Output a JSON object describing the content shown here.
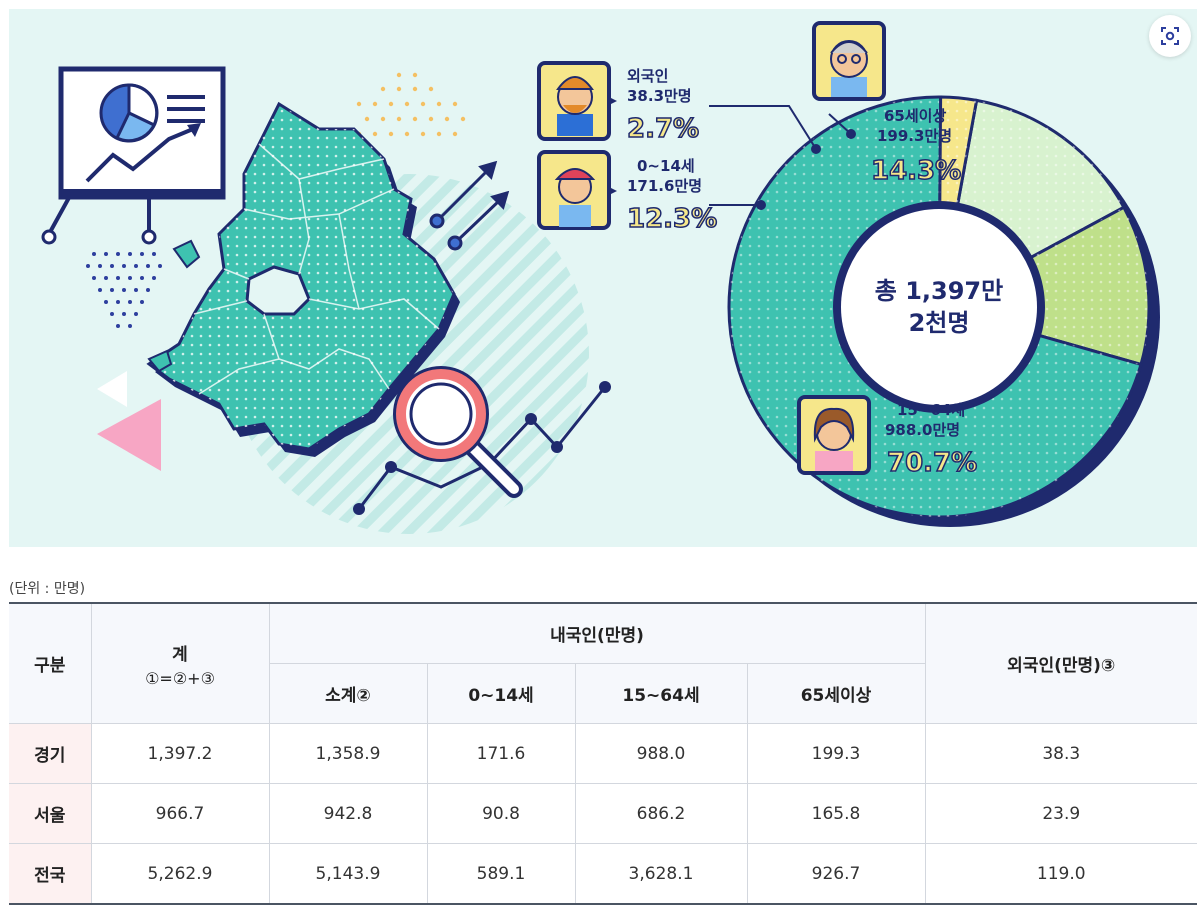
{
  "chart_data": {
    "type": "pie",
    "center_label_line1": "총 1,397만",
    "center_label_line2": "2천명",
    "slices": [
      {
        "name_line1": "외국인",
        "value_line": "38.3만명",
        "percent_label": "2.7%",
        "value": 38.3,
        "percent": 2.7,
        "color": "#f6e78b"
      },
      {
        "name_line1": "0~14세",
        "value_line": "171.6만명",
        "percent_label": "12.3%",
        "value": 171.6,
        "percent": 12.3,
        "color": "#bfe08a"
      },
      {
        "name_line1": "15~64세",
        "value_line": "988.0만명",
        "percent_label": "70.7%",
        "value": 988.0,
        "percent": 70.7,
        "color": "#3ec2b0"
      },
      {
        "name_line1": "65세이상",
        "value_line": "199.3만명",
        "percent_label": "14.3%",
        "value": 199.3,
        "percent": 14.3,
        "color": "#d8f2cf"
      }
    ],
    "slice_order": [
      3,
      1,
      2,
      0
    ]
  },
  "colors": {
    "navy": "#1f2a6e",
    "teal": "#3ec2b0",
    "background": "#e4f6f4",
    "pink": "#f7a6c4"
  },
  "unit_note": "(단위 : 만명)",
  "table": {
    "header": {
      "category": "구분",
      "total_line1": "계",
      "total_line2": "①=②+③",
      "native_group": "내국인(만명)",
      "foreign": "외국인(만명)③",
      "native_cols": [
        "소계②",
        "0~14세",
        "15~64세",
        "65세이상"
      ]
    },
    "rows": [
      {
        "label": "경기",
        "values": [
          "1,397.2",
          "1,358.9",
          "171.6",
          "988.0",
          "199.3",
          "38.3"
        ]
      },
      {
        "label": "서울",
        "values": [
          "966.7",
          "942.8",
          "90.8",
          "686.2",
          "165.8",
          "23.9"
        ]
      },
      {
        "label": "전국",
        "values": [
          "5,262.9",
          "5,143.9",
          "589.1",
          "3,628.1",
          "926.7",
          "119.0"
        ]
      }
    ]
  },
  "icons": {
    "scan": "scan-icon",
    "presentation_board": "presentation-board-icon",
    "map": "gyeonggi-map-illustration",
    "magnifier": "magnifier-icon",
    "avatars": [
      "foreigner-avatar-icon",
      "child-avatar-icon",
      "elderly-avatar-icon",
      "adult-avatar-icon"
    ]
  }
}
